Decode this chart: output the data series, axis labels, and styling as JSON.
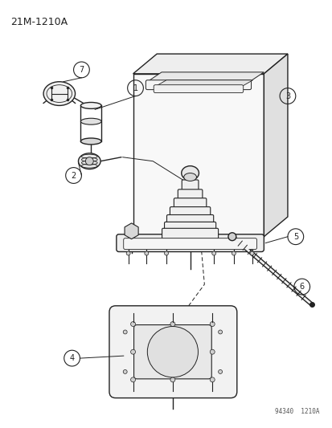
{
  "title": "21M-1210A",
  "watermark": "94340  1210A",
  "background_color": "#ffffff",
  "line_color": "#222222",
  "figsize": [
    4.14,
    5.33
  ],
  "dpi": 100
}
